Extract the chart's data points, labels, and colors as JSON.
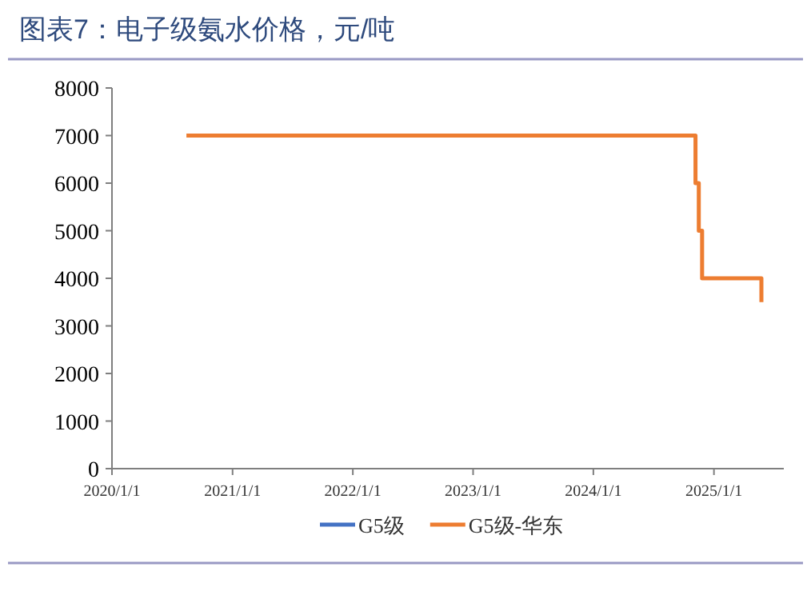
{
  "chart_data": {
    "type": "step",
    "title": "图表7：电子级氨水价格，元/吨",
    "x": [
      "2020-08-14",
      "2024-11-06",
      "2024-11-16",
      "2024-11-26",
      "2025-05-25"
    ],
    "series": [
      {
        "name": "G5级",
        "color": "#4472c4",
        "values": [
          null,
          null,
          null,
          null,
          null
        ]
      },
      {
        "name": "G5级-华东",
        "color": "#ed7d31",
        "values": [
          7000,
          6000,
          5000,
          4000,
          3500
        ]
      }
    ],
    "xlim": [
      "2020-01-01",
      "2025-08-01"
    ],
    "xticks": [
      {
        "value": "2020-01-01",
        "label": "2020/1/1"
      },
      {
        "value": "2021-01-01",
        "label": "2021/1/1"
      },
      {
        "value": "2022-01-01",
        "label": "2022/1/1"
      },
      {
        "value": "2023-01-01",
        "label": "2023/1/1"
      },
      {
        "value": "2024-01-01",
        "label": "2024/1/1"
      },
      {
        "value": "2025-01-01",
        "label": "2025/1/1"
      }
    ],
    "ylim": [
      0,
      8000
    ],
    "yticks": [
      0,
      1000,
      2000,
      3000,
      4000,
      5000,
      6000,
      7000,
      8000
    ],
    "legend": "bottom",
    "grid": false,
    "marker": "none",
    "line_style": "solid"
  }
}
